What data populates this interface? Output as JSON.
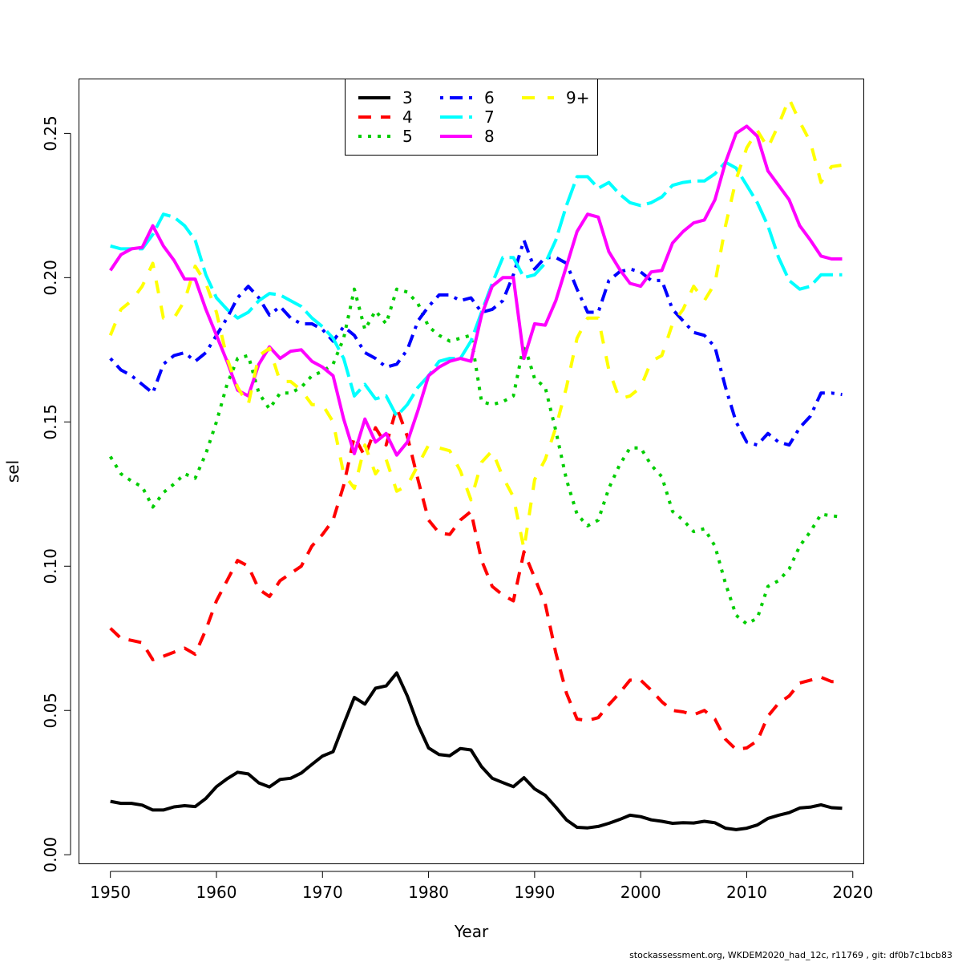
{
  "chart_data": {
    "type": "line",
    "xlabel": "Year",
    "ylabel": "sel",
    "xlim": [
      1947,
      2021
    ],
    "ylim": [
      -0.003,
      0.269
    ],
    "xticks": [
      1950,
      1960,
      1970,
      1980,
      1990,
      2000,
      2010,
      2020
    ],
    "yticks": [
      0.0,
      0.05,
      0.1,
      0.15,
      0.2,
      0.25
    ],
    "ytick_labels": [
      "0.00",
      "0.05",
      "0.10",
      "0.15",
      "0.20",
      "0.25"
    ],
    "grid": false,
    "legend_position": "top-center",
    "x": [
      1950,
      1951,
      1952,
      1953,
      1954,
      1955,
      1956,
      1957,
      1958,
      1959,
      1960,
      1961,
      1962,
      1963,
      1964,
      1965,
      1966,
      1967,
      1968,
      1969,
      1970,
      1971,
      1972,
      1973,
      1974,
      1975,
      1976,
      1977,
      1978,
      1979,
      1980,
      1981,
      1982,
      1983,
      1984,
      1985,
      1986,
      1987,
      1988,
      1989,
      1990,
      1991,
      1992,
      1993,
      1994,
      1995,
      1996,
      1997,
      1998,
      1999,
      2000,
      2001,
      2002,
      2003,
      2004,
      2005,
      2006,
      2007,
      2008,
      2009,
      2010,
      2011,
      2012,
      2013,
      2014,
      2015,
      2016,
      2017,
      2018,
      2019
    ],
    "series": [
      {
        "name": "3",
        "color": "#000000",
        "dash": "solid",
        "values": [
          0.0185,
          0.0178,
          0.0178,
          0.0172,
          0.0155,
          0.0155,
          0.0166,
          0.017,
          0.0167,
          0.0195,
          0.0236,
          0.0263,
          0.0286,
          0.028,
          0.0249,
          0.0235,
          0.0261,
          0.0265,
          0.0283,
          0.0313,
          0.0342,
          0.0357,
          0.0452,
          0.0545,
          0.0522,
          0.0577,
          0.0585,
          0.063,
          0.055,
          0.045,
          0.037,
          0.0347,
          0.0343,
          0.0368,
          0.0363,
          0.0305,
          0.0265,
          0.025,
          0.0236,
          0.0267,
          0.0228,
          0.0206,
          0.0165,
          0.0121,
          0.0095,
          0.0093,
          0.0098,
          0.0109,
          0.0122,
          0.0137,
          0.0132,
          0.0121,
          0.0116,
          0.0109,
          0.0111,
          0.011,
          0.0116,
          0.0111,
          0.0092,
          0.0087,
          0.0092,
          0.0103,
          0.0126,
          0.0137,
          0.0146,
          0.0162,
          0.0165,
          0.0173,
          0.0163,
          0.0161
        ]
      },
      {
        "name": "4",
        "color": "#ff0000",
        "dash": "short",
        "values": [
          0.0785,
          0.075,
          0.0743,
          0.0735,
          0.0676,
          0.0688,
          0.0702,
          0.0716,
          0.0695,
          0.078,
          0.088,
          0.095,
          0.102,
          0.1,
          0.092,
          0.0895,
          0.095,
          0.0975,
          0.1,
          0.107,
          0.111,
          0.116,
          0.128,
          0.145,
          0.138,
          0.148,
          0.142,
          0.155,
          0.145,
          0.13,
          0.116,
          0.1115,
          0.111,
          0.116,
          0.119,
          0.102,
          0.093,
          0.09,
          0.088,
          0.105,
          0.096,
          0.087,
          0.07,
          0.056,
          0.047,
          0.0465,
          0.0475,
          0.052,
          0.056,
          0.0605,
          0.0605,
          0.057,
          0.053,
          0.05,
          0.0495,
          0.0485,
          0.05,
          0.047,
          0.04,
          0.0365,
          0.037,
          0.0395,
          0.048,
          0.0525,
          0.055,
          0.0595,
          0.0605,
          0.0615,
          0.06,
          0.06
        ]
      },
      {
        "name": "5",
        "color": "#00cd00",
        "dash": "dotted",
        "values": [
          0.138,
          0.132,
          0.1295,
          0.1275,
          0.1205,
          0.1255,
          0.1285,
          0.132,
          0.1305,
          0.139,
          0.15,
          0.163,
          0.172,
          0.173,
          0.16,
          0.1545,
          0.16,
          0.16,
          0.162,
          0.166,
          0.1675,
          0.17,
          0.179,
          0.196,
          0.182,
          0.1885,
          0.184,
          0.196,
          0.195,
          0.191,
          0.183,
          0.18,
          0.178,
          0.179,
          0.18,
          0.157,
          0.156,
          0.157,
          0.159,
          0.177,
          0.165,
          0.162,
          0.147,
          0.13,
          0.118,
          0.114,
          0.116,
          0.127,
          0.135,
          0.141,
          0.141,
          0.135,
          0.131,
          0.119,
          0.116,
          0.112,
          0.113,
          0.107,
          0.094,
          0.083,
          0.08,
          0.082,
          0.093,
          0.095,
          0.099,
          0.107,
          0.112,
          0.118,
          0.1175,
          0.117
        ]
      },
      {
        "name": "6",
        "color": "#0000ff",
        "dash": "dotdash",
        "values": [
          0.172,
          0.168,
          0.166,
          0.163,
          0.16,
          0.17,
          0.173,
          0.174,
          0.171,
          0.174,
          0.18,
          0.186,
          0.193,
          0.197,
          0.193,
          0.187,
          0.19,
          0.186,
          0.184,
          0.184,
          0.182,
          0.178,
          0.183,
          0.18,
          0.174,
          0.172,
          0.169,
          0.17,
          0.175,
          0.185,
          0.19,
          0.194,
          0.194,
          0.192,
          0.193,
          0.188,
          0.189,
          0.192,
          0.201,
          0.213,
          0.203,
          0.207,
          0.207,
          0.205,
          0.196,
          0.188,
          0.188,
          0.199,
          0.202,
          0.203,
          0.202,
          0.199,
          0.199,
          0.189,
          0.185,
          0.181,
          0.18,
          0.176,
          0.162,
          0.15,
          0.143,
          0.142,
          0.146,
          0.143,
          0.142,
          0.148,
          0.152,
          0.16,
          0.16,
          0.1595
        ]
      },
      {
        "name": "7",
        "color": "#00ffff",
        "dash": "longdash",
        "values": [
          0.211,
          0.21,
          0.21,
          0.21,
          0.215,
          0.222,
          0.221,
          0.218,
          0.213,
          0.201,
          0.193,
          0.189,
          0.186,
          0.188,
          0.192,
          0.1945,
          0.194,
          0.192,
          0.19,
          0.186,
          0.183,
          0.179,
          0.172,
          0.159,
          0.163,
          0.158,
          0.159,
          0.152,
          0.156,
          0.162,
          0.166,
          0.171,
          0.172,
          0.172,
          0.178,
          0.188,
          0.198,
          0.207,
          0.207,
          0.2,
          0.201,
          0.205,
          0.213,
          0.225,
          0.235,
          0.235,
          0.231,
          0.233,
          0.229,
          0.226,
          0.225,
          0.226,
          0.228,
          0.232,
          0.233,
          0.2335,
          0.2335,
          0.236,
          0.24,
          0.238,
          0.232,
          0.226,
          0.218,
          0.207,
          0.199,
          0.196,
          0.197,
          0.201,
          0.201,
          0.201
        ]
      },
      {
        "name": "8",
        "color": "#ff00ff",
        "dash": "solid",
        "values": [
          0.2025,
          0.208,
          0.21,
          0.2105,
          0.218,
          0.211,
          0.206,
          0.1995,
          0.1995,
          0.189,
          0.18,
          0.171,
          0.161,
          0.159,
          0.17,
          0.176,
          0.172,
          0.1745,
          0.175,
          0.171,
          0.169,
          0.166,
          0.151,
          0.139,
          0.151,
          0.143,
          0.146,
          0.1385,
          0.143,
          0.154,
          0.166,
          0.169,
          0.171,
          0.172,
          0.171,
          0.187,
          0.197,
          0.2,
          0.2,
          0.172,
          0.184,
          0.1835,
          0.192,
          0.204,
          0.216,
          0.222,
          0.221,
          0.209,
          0.203,
          0.198,
          0.197,
          0.202,
          0.2025,
          0.212,
          0.216,
          0.219,
          0.22,
          0.227,
          0.24,
          0.25,
          0.2525,
          0.249,
          0.237,
          0.232,
          0.227,
          0.218,
          0.213,
          0.2075,
          0.2065,
          0.2065
        ]
      },
      {
        "name": "9+",
        "color": "#ffff00",
        "dash": "dashed",
        "values": [
          0.18,
          0.189,
          0.192,
          0.197,
          0.205,
          0.186,
          0.186,
          0.192,
          0.204,
          0.198,
          0.188,
          0.172,
          0.162,
          0.156,
          0.173,
          0.1755,
          0.164,
          0.164,
          0.161,
          0.156,
          0.156,
          0.15,
          0.132,
          0.127,
          0.142,
          0.132,
          0.137,
          0.126,
          0.128,
          0.135,
          0.142,
          0.141,
          0.14,
          0.133,
          0.123,
          0.136,
          0.14,
          0.131,
          0.124,
          0.106,
          0.13,
          0.137,
          0.148,
          0.162,
          0.179,
          0.186,
          0.186,
          0.168,
          0.158,
          0.159,
          0.162,
          0.171,
          0.173,
          0.184,
          0.189,
          0.197,
          0.192,
          0.198,
          0.218,
          0.234,
          0.245,
          0.251,
          0.245,
          0.253,
          0.262,
          0.254,
          0.247,
          0.233,
          0.2385,
          0.239
        ]
      }
    ]
  },
  "footer": "stockassessment.org, WKDEM2020_had_12c, r11769 , git: df0b7c1bcb83"
}
